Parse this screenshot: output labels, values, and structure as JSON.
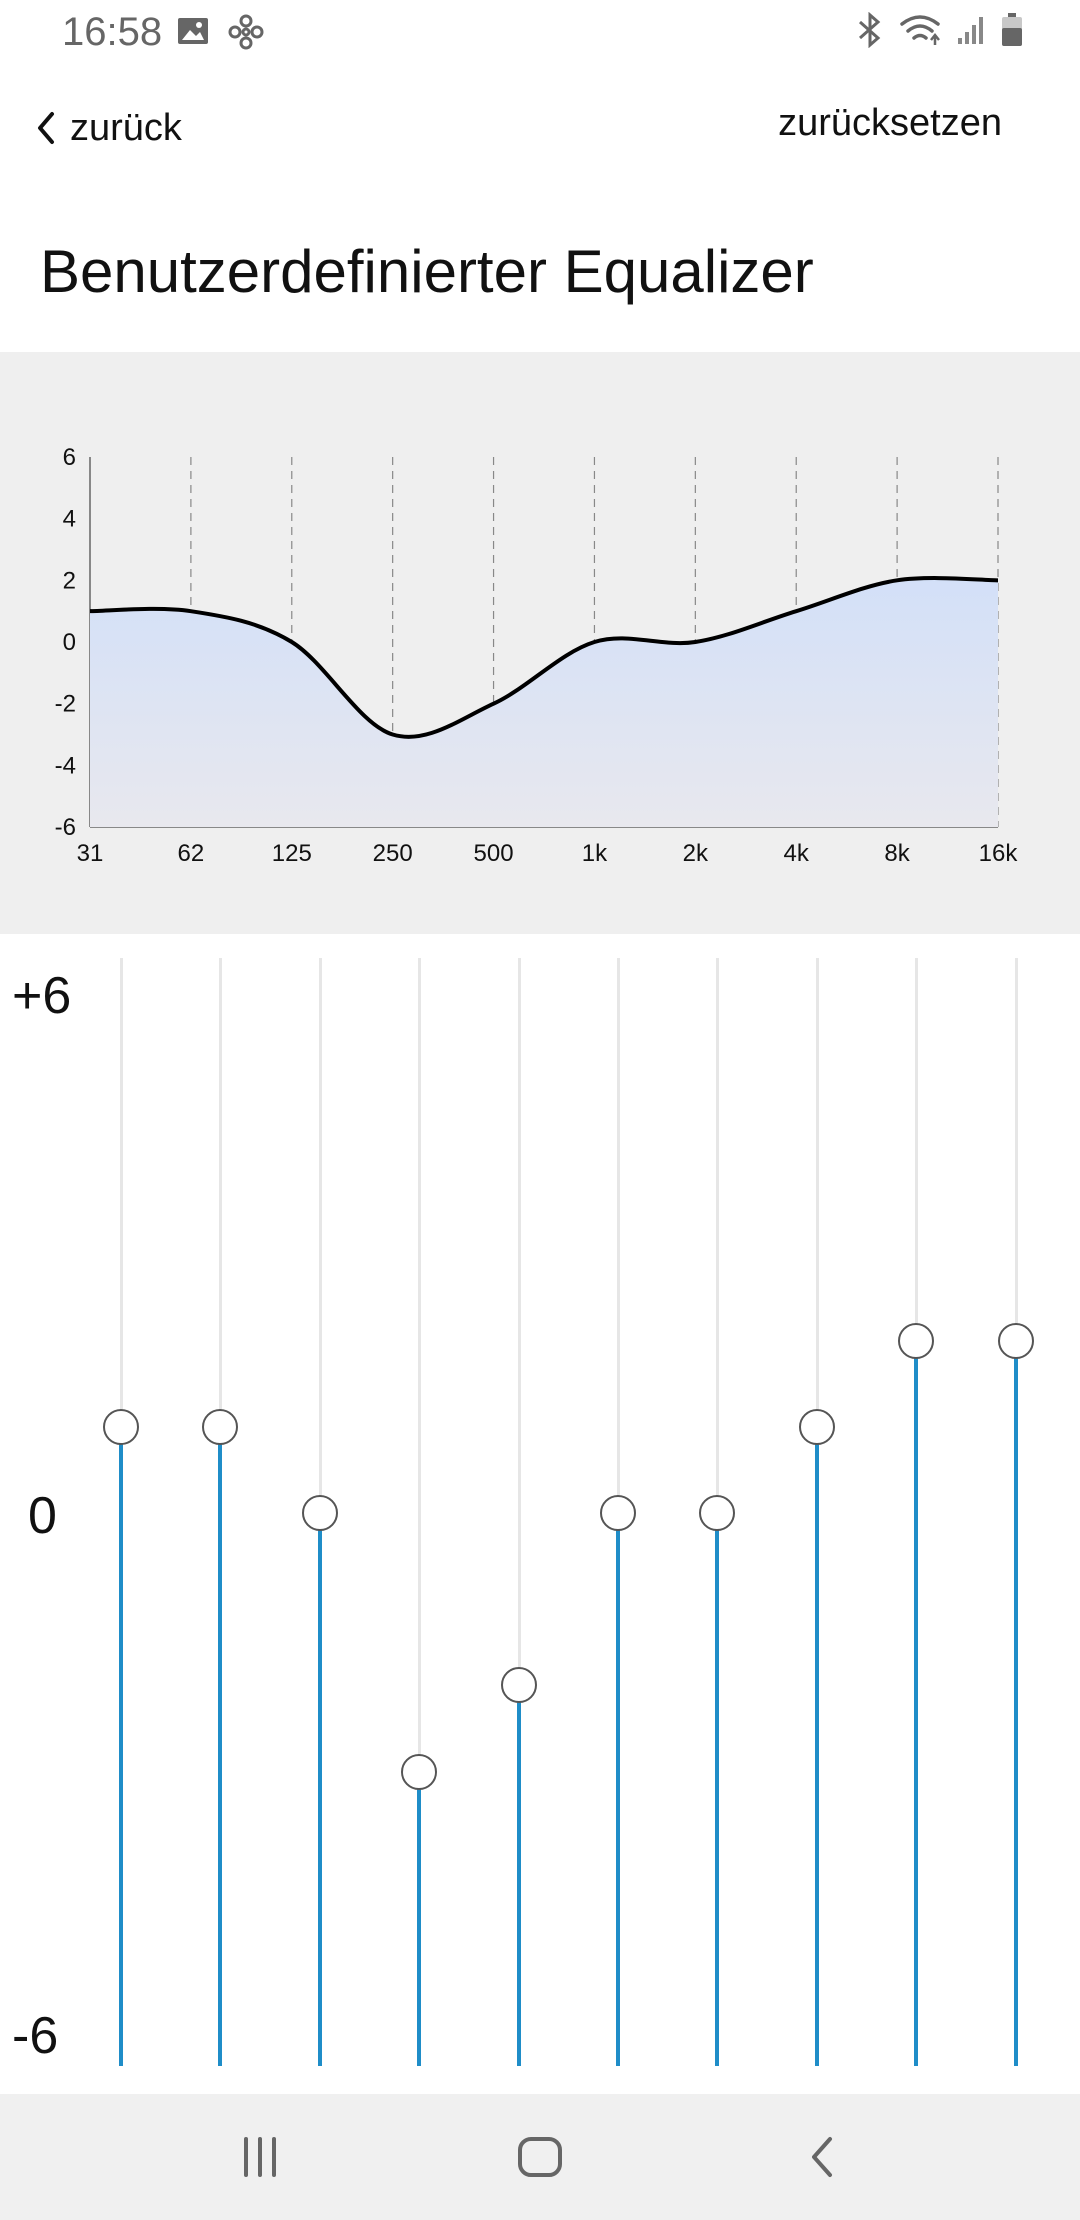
{
  "status_bar": {
    "time": "16:58",
    "icons_left": [
      "image-icon",
      "pinwheel-icon"
    ],
    "icons_right": [
      "bluetooth-icon",
      "wifi-icon",
      "signal-icon",
      "battery-icon"
    ]
  },
  "header": {
    "back_label": "zurück",
    "reset_label": "zurücksetzen"
  },
  "title": "Benutzerdefinierter Equalizer",
  "chart_data": {
    "type": "area",
    "x": [
      "31",
      "62",
      "125",
      "250",
      "500",
      "1k",
      "2k",
      "4k",
      "8k",
      "16k"
    ],
    "series": [
      {
        "values": [
          1,
          1,
          0,
          -3,
          -2,
          0,
          0,
          1,
          2,
          2
        ]
      }
    ],
    "ylim": [
      -6,
      6
    ],
    "yticks": [
      "6",
      "4",
      "2",
      "0",
      "-2",
      "-4",
      "-6"
    ],
    "grid": "vertical dashed",
    "colors": {
      "line": "#000000",
      "fill_top": "#d3e0f8",
      "fill_bottom": "#e8e8ee",
      "panel": "#efefef"
    }
  },
  "sliders": {
    "scale_top": "+6",
    "scale_mid": "0",
    "scale_bottom": "-6",
    "range": [
      -6,
      6
    ],
    "bands": [
      {
        "freq": "31",
        "value": 1
      },
      {
        "freq": "62",
        "value": 1
      },
      {
        "freq": "125",
        "value": 0
      },
      {
        "freq": "250",
        "value": -3
      },
      {
        "freq": "500",
        "value": -2
      },
      {
        "freq": "1k",
        "value": 0
      },
      {
        "freq": "2k",
        "value": 0
      },
      {
        "freq": "4k",
        "value": 1
      },
      {
        "freq": "8k",
        "value": 2
      },
      {
        "freq": "16k",
        "value": 2
      }
    ],
    "colors": {
      "fill": "#1f8dc8",
      "track": "#e6e6e6",
      "knob_border": "#555555"
    }
  },
  "nav_bar": {
    "items": [
      "recent-apps-icon",
      "home-icon",
      "back-icon"
    ]
  }
}
